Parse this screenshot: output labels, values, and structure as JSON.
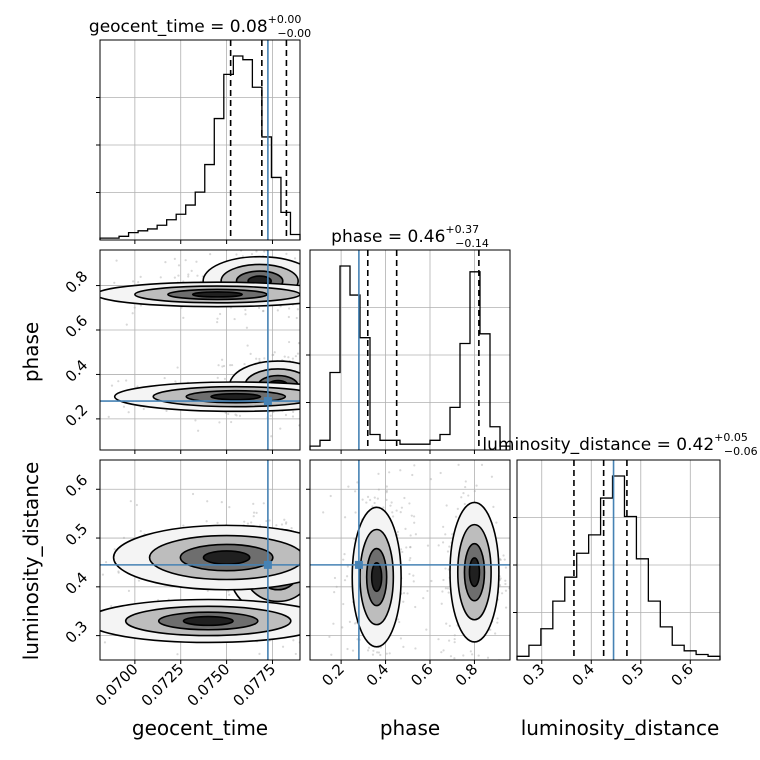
{
  "chart_data": {
    "type": "corner",
    "parameters": [
      {
        "key": "geocent_time",
        "label": "geocent_time",
        "title": "geocent_time",
        "median": "0.08",
        "plus": "+0.00",
        "minus": "−0.00",
        "range": [
          0.0681,
          0.079
        ],
        "ticks": [
          0.07,
          0.0725,
          0.075,
          0.0775
        ],
        "tick_labels": [
          "0.0700",
          "0.0725",
          "0.0750",
          "0.0775"
        ],
        "truth": 0.07725,
        "quantiles": [
          0.07522,
          0.07692,
          0.07826
        ],
        "hist_weights": [
          1,
          1,
          2,
          4,
          5,
          6,
          8,
          11,
          14,
          19,
          26,
          41,
          66,
          90,
          100,
          98,
          83,
          56,
          34,
          15,
          3
        ]
      },
      {
        "key": "phase",
        "label": "phase",
        "title": "phase",
        "median": "0.46",
        "plus": "+0.37",
        "minus": "−0.14",
        "range": [
          0.06,
          0.96
        ],
        "ticks": [
          0.2,
          0.4,
          0.6,
          0.8
        ],
        "tick_labels": [
          "0.2",
          "0.4",
          "0.6",
          "0.8"
        ],
        "truth": 0.28,
        "quantiles": [
          0.32,
          0.45,
          0.82
        ],
        "hist_weights": [
          2,
          5,
          40,
          95,
          80,
          58,
          8,
          5,
          5,
          3,
          3,
          3,
          5,
          8,
          22,
          55,
          92,
          60,
          12,
          2
        ]
      },
      {
        "key": "luminosity_distance",
        "label": "luminosity_distance",
        "title": "luminosity_distance",
        "median": "0.42",
        "plus": "+0.05",
        "minus": "−0.06",
        "range": [
          0.25,
          0.66
        ],
        "ticks": [
          0.3,
          0.4,
          0.5,
          0.6
        ],
        "tick_labels": [
          "0.3",
          "0.4",
          "0.5",
          "0.6"
        ],
        "truth": 0.445,
        "quantiles": [
          0.365,
          0.425,
          0.472
        ],
        "hist_weights": [
          2,
          8,
          17,
          32,
          45,
          58,
          68,
          88,
          100,
          78,
          55,
          32,
          18,
          8,
          5,
          3,
          2
        ]
      }
    ],
    "pairs": [
      {
        "x": "geocent_time",
        "y": "phase",
        "blobs": [
          {
            "cx": 0.0768,
            "cy": 0.82,
            "sx": 0.0014,
            "sy": 0.05,
            "w": 1.0
          },
          {
            "cx": 0.0745,
            "cy": 0.76,
            "sx": 0.003,
            "sy": 0.025,
            "w": 0.6
          },
          {
            "cx": 0.0778,
            "cy": 0.35,
            "sx": 0.0012,
            "sy": 0.05,
            "w": 1.1
          },
          {
            "cx": 0.0755,
            "cy": 0.3,
            "sx": 0.003,
            "sy": 0.03,
            "w": 0.6
          }
        ]
      },
      {
        "x": "geocent_time",
        "y": "luminosity_distance",
        "blobs": [
          {
            "cx": 0.0778,
            "cy": 0.43,
            "sx": 0.0012,
            "sy": 0.04,
            "w": 1.0
          },
          {
            "cx": 0.075,
            "cy": 0.46,
            "sx": 0.0028,
            "sy": 0.03,
            "w": 0.6
          },
          {
            "cx": 0.074,
            "cy": 0.33,
            "sx": 0.003,
            "sy": 0.02,
            "w": 0.3
          }
        ]
      },
      {
        "x": "phase",
        "y": "luminosity_distance",
        "blobs": [
          {
            "cx": 0.36,
            "cy": 0.42,
            "sx": 0.05,
            "sy": 0.065,
            "w": 1.0
          },
          {
            "cx": 0.8,
            "cy": 0.43,
            "sx": 0.05,
            "sy": 0.065,
            "w": 1.0
          }
        ]
      }
    ],
    "grid": true,
    "truth_color": "#4682b4",
    "line_color": "#000000",
    "scatter_color": "#a9a9a9"
  }
}
